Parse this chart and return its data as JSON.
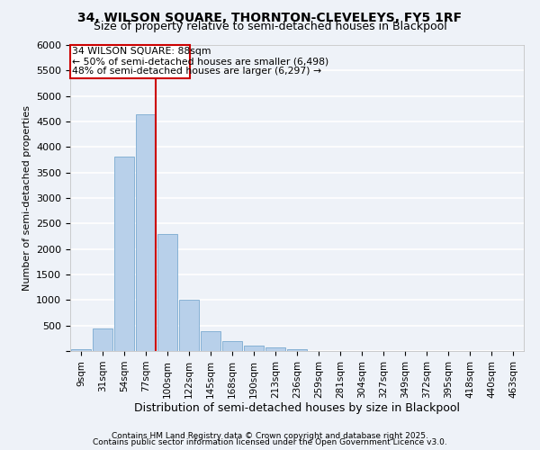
{
  "title1": "34, WILSON SQUARE, THORNTON-CLEVELEYS, FY5 1RF",
  "title2": "Size of property relative to semi-detached houses in Blackpool",
  "xlabel": "Distribution of semi-detached houses by size in Blackpool",
  "ylabel": "Number of semi-detached properties",
  "categories": [
    "9sqm",
    "31sqm",
    "54sqm",
    "77sqm",
    "100sqm",
    "122sqm",
    "145sqm",
    "168sqm",
    "190sqm",
    "213sqm",
    "236sqm",
    "259sqm",
    "281sqm",
    "304sqm",
    "327sqm",
    "349sqm",
    "372sqm",
    "395sqm",
    "418sqm",
    "440sqm",
    "463sqm"
  ],
  "values": [
    30,
    450,
    3820,
    4640,
    2290,
    1000,
    380,
    195,
    100,
    65,
    40,
    5,
    0,
    0,
    0,
    0,
    0,
    0,
    0,
    0,
    0
  ],
  "bar_color": "#b8d0ea",
  "bar_edge_color": "#7aaad0",
  "vline_color": "#cc0000",
  "box_edge_color": "#cc0000",
  "annotation_label": "34 WILSON SQUARE: 88sqm",
  "annotation_smaller": "← 50% of semi-detached houses are smaller (6,498)",
  "annotation_larger": "48% of semi-detached houses are larger (6,297) →",
  "ylim": [
    0,
    6000
  ],
  "yticks": [
    0,
    500,
    1000,
    1500,
    2000,
    2500,
    3000,
    3500,
    4000,
    4500,
    5000,
    5500,
    6000
  ],
  "footer1": "Contains HM Land Registry data © Crown copyright and database right 2025.",
  "footer2": "Contains public sector information licensed under the Open Government Licence v3.0.",
  "bg_color": "#eef2f8",
  "grid_color": "#ffffff",
  "title_fontsize": 10,
  "subtitle_fontsize": 9
}
